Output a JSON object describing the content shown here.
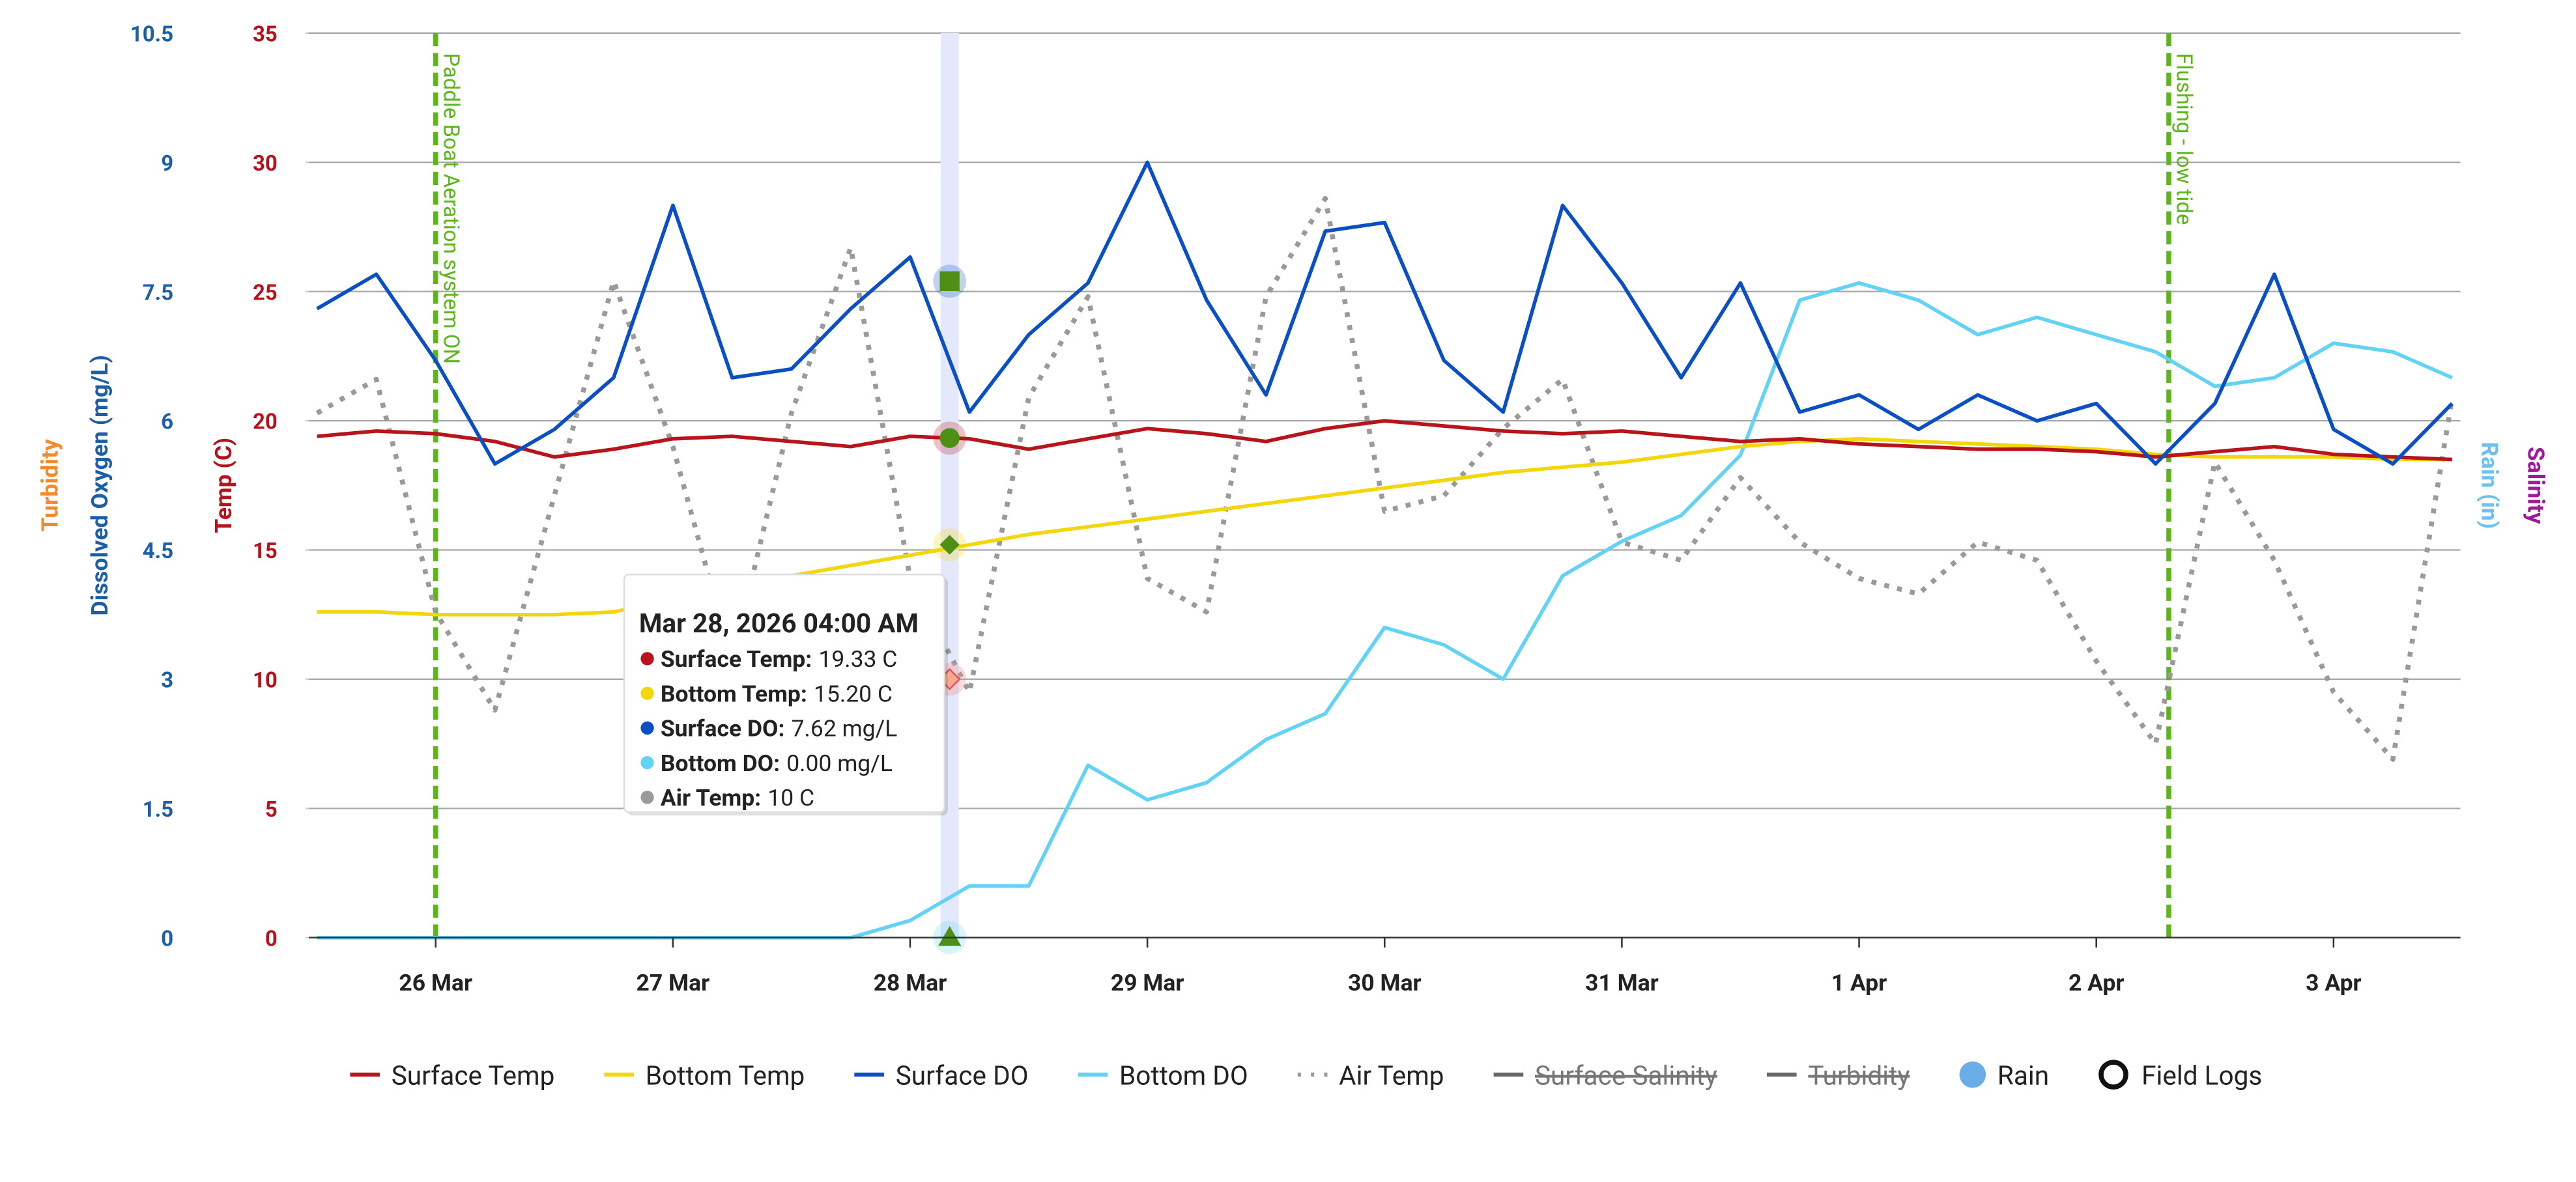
{
  "chart_data": {
    "type": "line",
    "x": [
      "2026-03-25T12:00",
      "2026-03-25T18:00",
      "2026-03-26T00:00",
      "2026-03-26T06:00",
      "2026-03-26T12:00",
      "2026-03-26T18:00",
      "2026-03-27T00:00",
      "2026-03-27T06:00",
      "2026-03-27T12:00",
      "2026-03-27T18:00",
      "2026-03-28T00:00",
      "2026-03-28T06:00",
      "2026-03-28T12:00",
      "2026-03-28T18:00",
      "2026-03-29T00:00",
      "2026-03-29T06:00",
      "2026-03-29T12:00",
      "2026-03-29T18:00",
      "2026-03-30T00:00",
      "2026-03-30T06:00",
      "2026-03-30T12:00",
      "2026-03-30T18:00",
      "2026-03-31T00:00",
      "2026-03-31T06:00",
      "2026-03-31T12:00",
      "2026-03-31T18:00",
      "2026-04-01T00:00",
      "2026-04-01T06:00",
      "2026-04-01T12:00",
      "2026-04-01T18:00",
      "2026-04-02T00:00",
      "2026-04-02T06:00",
      "2026-04-02T12:00",
      "2026-04-02T18:00",
      "2026-04-03T00:00",
      "2026-04-03T06:00",
      "2026-04-03T12:00"
    ],
    "xlim": [
      "2026-03-25T11:10",
      "2026-04-03T12:50"
    ],
    "xticks": [
      {
        "value": "2026-03-26T00:00",
        "label": "26 Mar"
      },
      {
        "value": "2026-03-27T00:00",
        "label": "27 Mar"
      },
      {
        "value": "2026-03-28T00:00",
        "label": "28 Mar"
      },
      {
        "value": "2026-03-29T00:00",
        "label": "29 Mar"
      },
      {
        "value": "2026-03-30T00:00",
        "label": "30 Mar"
      },
      {
        "value": "2026-03-31T00:00",
        "label": "31 Mar"
      },
      {
        "value": "2026-04-01T00:00",
        "label": "1 Apr"
      },
      {
        "value": "2026-04-02T00:00",
        "label": "2 Apr"
      },
      {
        "value": "2026-04-03T00:00",
        "label": "3 Apr"
      }
    ],
    "ylabel": "Temp (C)",
    "ylabel_color": "#b5121b",
    "ylim": [
      0,
      35
    ],
    "yticks": [
      0,
      5,
      10,
      15,
      20,
      25,
      30,
      35
    ],
    "y2label": "Dissolved Oxygen (mg/L)",
    "y2label_color": "#1c5fa8",
    "y2lim": [
      0,
      10.5
    ],
    "y2ticks": [
      0,
      1.5,
      3,
      4.5,
      6,
      7.5,
      9,
      10.5
    ],
    "grid": true,
    "other_axis_titles": [
      {
        "label": "Turbidity",
        "color": "#f08a2c",
        "side": "left"
      },
      {
        "label": "Rain (in)",
        "color": "#6bc1ef",
        "side": "right"
      },
      {
        "label": "Salinity",
        "color": "#a0189c",
        "side": "right"
      }
    ],
    "series": [
      {
        "name": "Surface Temp",
        "color": "#b8141b",
        "axis": "y",
        "values": [
          19.4,
          19.6,
          19.5,
          19.2,
          18.6,
          18.9,
          19.3,
          19.4,
          19.2,
          19.0,
          19.4,
          19.3,
          18.9,
          19.3,
          19.7,
          19.5,
          19.2,
          19.7,
          20.0,
          19.8,
          19.6,
          19.5,
          19.6,
          19.4,
          19.2,
          19.3,
          19.1,
          19.0,
          18.9,
          18.9,
          18.8,
          18.6,
          18.8,
          19.0,
          18.7,
          18.6,
          18.5
        ]
      },
      {
        "name": "Bottom Temp",
        "color": "#f3d60c",
        "axis": "y",
        "values": [
          12.6,
          12.6,
          12.5,
          12.5,
          12.5,
          12.6,
          13.1,
          13.6,
          14.0,
          14.4,
          14.8,
          15.2,
          15.6,
          15.9,
          16.2,
          16.5,
          16.8,
          17.1,
          17.4,
          17.7,
          18.0,
          18.2,
          18.4,
          18.7,
          19.0,
          19.2,
          19.3,
          19.2,
          19.1,
          19.0,
          18.9,
          18.7,
          18.6,
          18.6,
          18.6,
          18.5,
          18.5
        ]
      },
      {
        "name": "Surface DO",
        "color": "#0a4fc4",
        "axis": "y2",
        "values": [
          7.3,
          7.7,
          6.7,
          5.5,
          5.9,
          6.5,
          8.5,
          6.5,
          6.6,
          7.3,
          7.9,
          6.1,
          7.0,
          7.6,
          9.0,
          7.4,
          6.3,
          8.2,
          8.3,
          6.7,
          6.1,
          8.5,
          7.6,
          6.5,
          7.6,
          6.1,
          6.3,
          5.9,
          6.3,
          6.0,
          6.2,
          5.5,
          6.2,
          7.7,
          5.9,
          5.5,
          6.2
        ]
      },
      {
        "name": "Bottom DO",
        "color": "#62d2f5",
        "axis": "y2",
        "values": [
          0,
          0,
          0,
          0,
          0,
          0,
          0,
          0,
          0,
          0,
          0.2,
          0.6,
          0.6,
          2.0,
          1.6,
          1.8,
          2.3,
          2.6,
          3.6,
          3.4,
          3.0,
          4.2,
          4.6,
          4.9,
          5.6,
          7.4,
          7.6,
          7.4,
          7.0,
          7.2,
          7.0,
          6.8,
          6.4,
          6.5,
          6.9,
          6.8,
          6.5
        ]
      },
      {
        "name": "Air Temp",
        "color": "#9a9a9a",
        "axis": "y",
        "line_style": "dotted",
        "values": [
          20.3,
          21.6,
          12.6,
          8.8,
          17.1,
          25.4,
          19.0,
          10.7,
          20.3,
          26.7,
          13.9,
          9.5,
          20.9,
          24.8,
          13.9,
          12.6,
          24.8,
          28.6,
          16.5,
          17.1,
          19.7,
          21.6,
          15.3,
          14.6,
          17.8,
          15.3,
          13.9,
          13.3,
          15.3,
          14.6,
          10.7,
          7.5,
          18.4,
          14.6,
          9.5,
          6.9,
          20.9
        ]
      }
    ],
    "legend_extra": [
      {
        "name": "Surface Salinity",
        "color": "#666666",
        "hidden": true,
        "symbol": "line"
      },
      {
        "name": "Turbidity",
        "color": "#666666",
        "hidden": true,
        "symbol": "line"
      },
      {
        "name": "Rain",
        "color": "#6aaee8",
        "symbol": "circle"
      },
      {
        "name": "Field Logs",
        "color": "#111111",
        "symbol": "ring"
      }
    ],
    "annotations": [
      {
        "x": "2026-03-26T00:00",
        "label": "Paddle Boat Aeration system ON",
        "color": "#5cb61a"
      },
      {
        "x": "2026-04-02T07:20",
        "label": "Flushing - low tide",
        "color": "#5cb61a"
      }
    ],
    "tooltip": {
      "x": "2026-03-28T04:00",
      "title": "Mar 28, 2026 04:00 AM",
      "items": [
        {
          "label": "Surface Temp:",
          "value": 19.33,
          "value_label": "19.33 C",
          "color": "#b8141b",
          "axis": "y",
          "marker": "circle"
        },
        {
          "label": "Bottom Temp:",
          "value": 15.2,
          "value_label": "15.20 C",
          "color": "#f3d60c",
          "axis": "y",
          "marker": "diamond"
        },
        {
          "label": "Surface DO:",
          "value": 7.62,
          "value_label": "7.62 mg/L",
          "color": "#0a4fc4",
          "axis": "y2",
          "marker": "square"
        },
        {
          "label": "Bottom DO:",
          "value": 0.0,
          "value_label": "0.00 mg/L",
          "color": "#62d2f5",
          "axis": "y2",
          "marker": "triangle"
        },
        {
          "label": "Air Temp:",
          "value": 10,
          "value_label": "10 C",
          "color": "#9a9a9a",
          "axis": "y",
          "marker": "diamond-pink"
        }
      ]
    }
  }
}
